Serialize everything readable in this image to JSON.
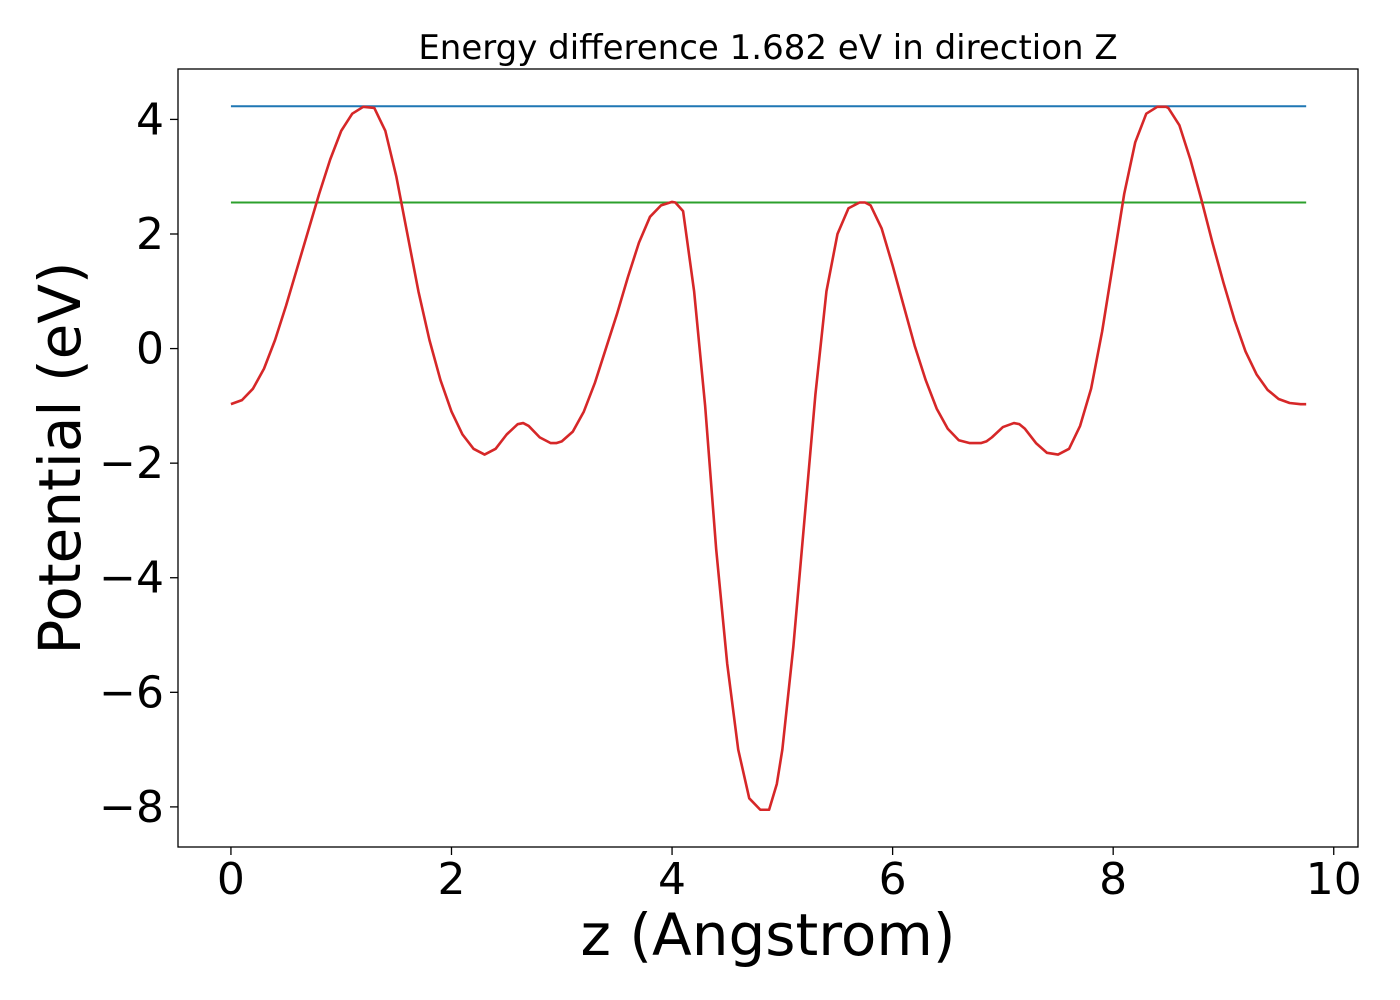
{
  "chart_data": {
    "type": "line",
    "title": "Energy difference 1.682 eV in direction Z",
    "xlabel": "z (Angstrom)",
    "ylabel": "Potential (eV)",
    "xlim": [
      -0.48,
      10.22
    ],
    "ylim": [
      -8.7,
      4.88
    ],
    "xticks": [
      0,
      2,
      4,
      6,
      8,
      10
    ],
    "yticks": [
      -8,
      -6,
      -4,
      -2,
      0,
      2,
      4
    ],
    "xtick_labels": [
      "0",
      "2",
      "4",
      "6",
      "8",
      "10"
    ],
    "ytick_labels": [
      "−8",
      "−6",
      "−4",
      "−2",
      "0",
      "2",
      "4"
    ],
    "grid": false,
    "legend": "none",
    "series": [
      {
        "color": "#1f77b4",
        "x": [
          0,
          9.75
        ],
        "y": [
          4.23,
          4.23
        ]
      },
      {
        "color": "#2ca02c",
        "x": [
          0,
          9.75
        ],
        "y": [
          2.55,
          2.55
        ]
      },
      {
        "color": "#d62728",
        "x": [
          0,
          0.1,
          0.2,
          0.3,
          0.4,
          0.5,
          0.6,
          0.7,
          0.8,
          0.9,
          1.0,
          1.1,
          1.2,
          1.3,
          1.4,
          1.5,
          1.6,
          1.7,
          1.8,
          1.9,
          2.0,
          2.1,
          2.2,
          2.3,
          2.4,
          2.5,
          2.6,
          2.65,
          2.7,
          2.8,
          2.9,
          2.95,
          3.0,
          3.1,
          3.2,
          3.3,
          3.4,
          3.5,
          3.6,
          3.7,
          3.8,
          3.9,
          4.0,
          4.03,
          4.1,
          4.2,
          4.3,
          4.4,
          4.5,
          4.6,
          4.7,
          4.8,
          4.88,
          4.95,
          5.0,
          5.1,
          5.2,
          5.3,
          5.4,
          5.5,
          5.6,
          5.7,
          5.75,
          5.8,
          5.9,
          6.0,
          6.1,
          6.2,
          6.3,
          6.4,
          6.5,
          6.6,
          6.7,
          6.8,
          6.85,
          6.9,
          7.0,
          7.1,
          7.15,
          7.2,
          7.3,
          7.4,
          7.5,
          7.6,
          7.7,
          7.8,
          7.9,
          8.0,
          8.1,
          8.2,
          8.3,
          8.4,
          8.48,
          8.5,
          8.6,
          8.7,
          8.8,
          8.9,
          9.0,
          9.1,
          9.2,
          9.3,
          9.4,
          9.5,
          9.6,
          9.7,
          9.75
        ],
        "y": [
          -0.97,
          -0.9,
          -0.7,
          -0.35,
          0.15,
          0.75,
          1.4,
          2.05,
          2.7,
          3.3,
          3.8,
          4.1,
          4.22,
          4.2,
          3.8,
          3.0,
          2.0,
          1.0,
          0.15,
          -0.55,
          -1.1,
          -1.5,
          -1.75,
          -1.85,
          -1.75,
          -1.5,
          -1.32,
          -1.3,
          -1.35,
          -1.55,
          -1.65,
          -1.65,
          -1.62,
          -1.45,
          -1.1,
          -0.6,
          0.0,
          0.6,
          1.25,
          1.85,
          2.3,
          2.5,
          2.56,
          2.55,
          2.4,
          1.0,
          -1.0,
          -3.5,
          -5.5,
          -7.0,
          -7.85,
          -8.05,
          -8.05,
          -7.6,
          -7.0,
          -5.2,
          -3.0,
          -0.8,
          1.0,
          2.0,
          2.45,
          2.55,
          2.55,
          2.5,
          2.1,
          1.45,
          0.75,
          0.05,
          -0.55,
          -1.05,
          -1.4,
          -1.6,
          -1.65,
          -1.65,
          -1.62,
          -1.55,
          -1.37,
          -1.3,
          -1.32,
          -1.4,
          -1.65,
          -1.82,
          -1.85,
          -1.75,
          -1.35,
          -0.7,
          0.3,
          1.5,
          2.7,
          3.6,
          4.1,
          4.22,
          4.22,
          4.2,
          3.9,
          3.3,
          2.6,
          1.85,
          1.15,
          0.5,
          -0.05,
          -0.45,
          -0.72,
          -0.88,
          -0.95,
          -0.97,
          -0.97
        ]
      }
    ]
  }
}
